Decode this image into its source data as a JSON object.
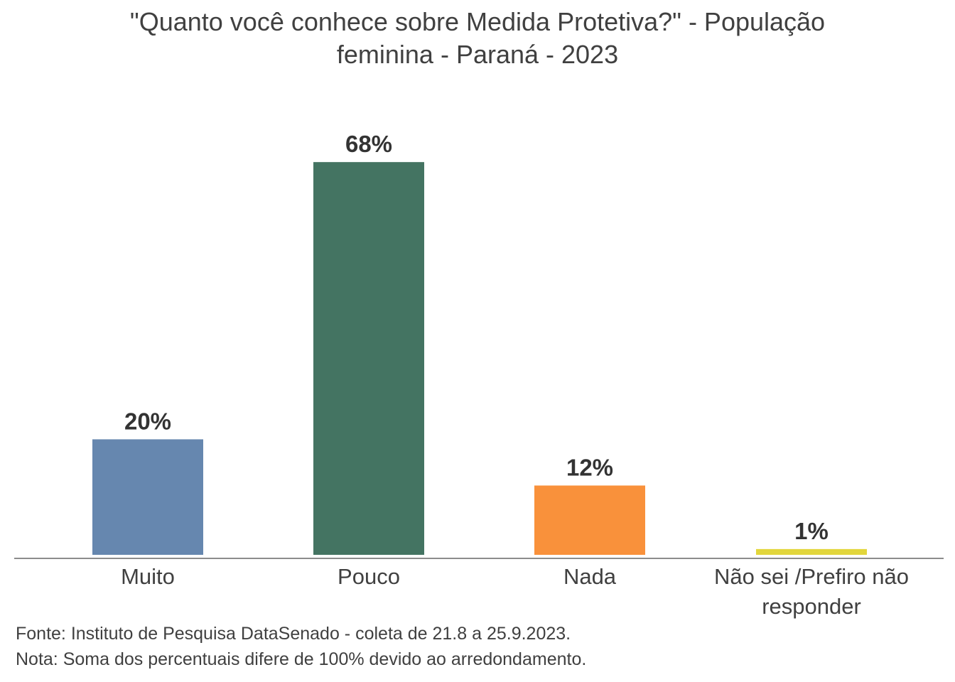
{
  "chart_data": {
    "type": "bar",
    "title_lines": [
      "\"Quanto você conhece sobre Medida Protetiva?\" - População",
      "feminina - Paraná - 2023"
    ],
    "categories": [
      [
        "Muito"
      ],
      [
        "Pouco"
      ],
      [
        "Nada"
      ],
      [
        "Não sei /Prefiro não",
        "responder"
      ]
    ],
    "values": [
      20,
      68,
      12,
      1
    ],
    "value_labels": [
      "20%",
      "68%",
      "12%",
      "1%"
    ],
    "colors": [
      "#6687AF",
      "#447462",
      "#F9913B",
      "#E2D63C"
    ],
    "ylim": [
      0,
      100
    ],
    "grid": false,
    "legend": "none",
    "xlabel": "",
    "ylabel": ""
  },
  "footnotes": {
    "source": "Fonte: Instituto de Pesquisa DataSenado - coleta de 21.8 a 25.9.2023.",
    "note": "Nota: Soma dos percentuais difere de 100% devido ao arredondamento."
  }
}
